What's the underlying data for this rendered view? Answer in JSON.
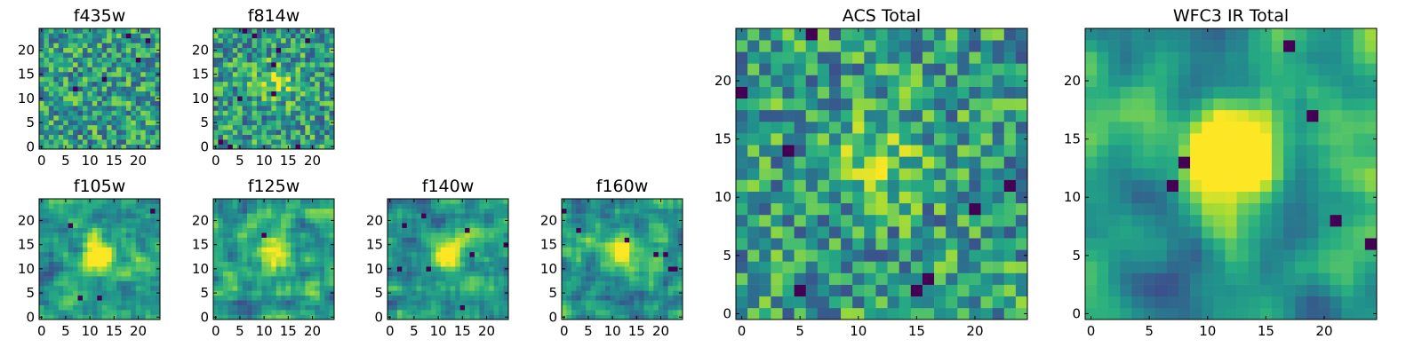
{
  "chart_data": [
    {
      "id": "f435w",
      "type": "heatmap",
      "title": "f435w",
      "grid_size": 25,
      "seed": 435,
      "smooth": 0,
      "peak": 0.0,
      "dark_cells": 5,
      "xticks": [
        "0",
        "5",
        "10",
        "15",
        "20"
      ],
      "yticks": [
        "0",
        "5",
        "10",
        "15",
        "20"
      ],
      "colormap": "viridis",
      "colorbar": false
    },
    {
      "id": "f814w",
      "type": "heatmap",
      "title": "f814w",
      "grid_size": 25,
      "seed": 814,
      "smooth": 0,
      "peak": 0.35,
      "dark_cells": 10,
      "xticks": [
        "0",
        "5",
        "10",
        "15",
        "20"
      ],
      "yticks": [
        "0",
        "5",
        "10",
        "15",
        "20"
      ],
      "colormap": "viridis",
      "colorbar": false
    },
    {
      "id": "f105w",
      "type": "heatmap",
      "title": "f105w",
      "grid_size": 25,
      "seed": 105,
      "smooth": 1,
      "peak": 0.7,
      "dark_cells": 4,
      "xticks": [
        "0",
        "5",
        "10",
        "15",
        "20"
      ],
      "yticks": [
        "0",
        "5",
        "10",
        "15",
        "20"
      ],
      "colormap": "viridis",
      "colorbar": false
    },
    {
      "id": "f125w",
      "type": "heatmap",
      "title": "f125w",
      "grid_size": 25,
      "seed": 125,
      "smooth": 1,
      "peak": 0.6,
      "dark_cells": 1,
      "xticks": [
        "0",
        "5",
        "10",
        "15",
        "20"
      ],
      "yticks": [
        "0",
        "5",
        "10",
        "15",
        "20"
      ],
      "colormap": "viridis",
      "colorbar": false
    },
    {
      "id": "f140w",
      "type": "heatmap",
      "title": "f140w",
      "grid_size": 25,
      "seed": 140,
      "smooth": 1,
      "peak": 0.6,
      "dark_cells": 8,
      "xticks": [
        "0",
        "5",
        "10",
        "15",
        "20"
      ],
      "yticks": [
        "0",
        "5",
        "10",
        "15",
        "20"
      ],
      "colormap": "viridis",
      "colorbar": false
    },
    {
      "id": "f160w",
      "type": "heatmap",
      "title": "f160w",
      "grid_size": 25,
      "seed": 160,
      "smooth": 1,
      "peak": 0.7,
      "dark_cells": 7,
      "xticks": [
        "0",
        "5",
        "10",
        "15",
        "20"
      ],
      "yticks": [
        "0",
        "5",
        "10",
        "15",
        "20"
      ],
      "colormap": "viridis",
      "colorbar": false
    },
    {
      "id": "acs-total",
      "type": "heatmap",
      "title": "ACS Total",
      "grid_size": 25,
      "seed": 7,
      "smooth": 0,
      "peak": 0.3,
      "dark_cells": 8,
      "xticks": [
        "0",
        "5",
        "10",
        "15",
        "20"
      ],
      "yticks": [
        "0",
        "5",
        "10",
        "15",
        "20"
      ],
      "colormap": "viridis",
      "colorbar": false
    },
    {
      "id": "wfc3-ir-total",
      "type": "heatmap",
      "title": "WFC3 IR Total",
      "grid_size": 25,
      "seed": 33,
      "smooth": 2,
      "peak": 1.1,
      "dark_cells": 6,
      "xticks": [
        "0",
        "5",
        "10",
        "15",
        "20"
      ],
      "yticks": [
        "0",
        "5",
        "10",
        "15",
        "20"
      ],
      "colormap": "viridis",
      "colorbar": false
    }
  ]
}
